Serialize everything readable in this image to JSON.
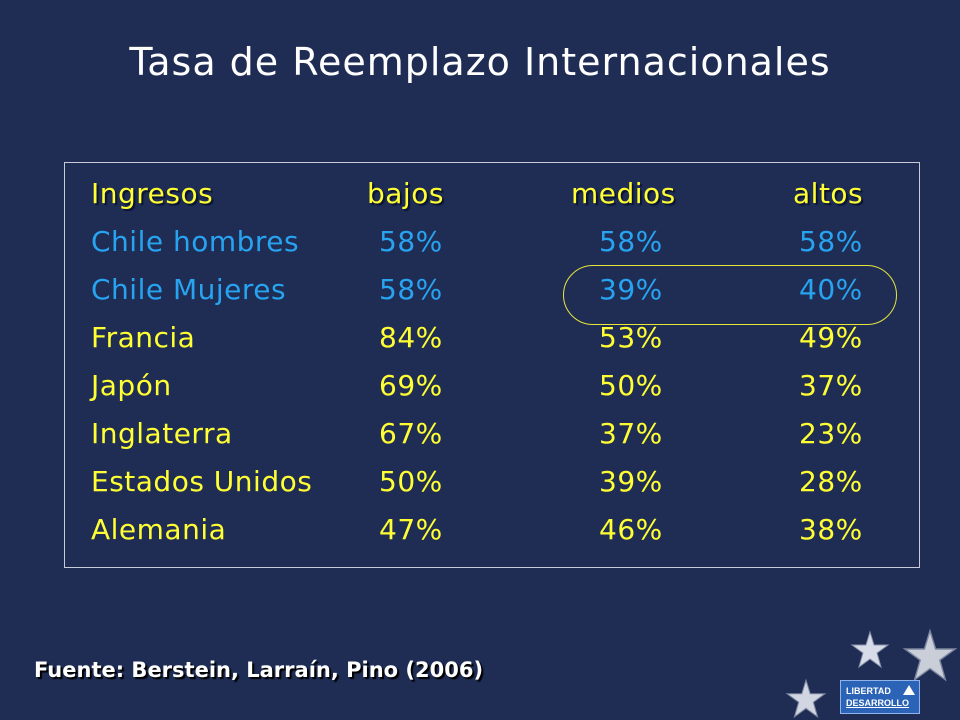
{
  "title": "Tasa de Reemplazo Internacionales",
  "table": {
    "headers": [
      "Ingresos",
      "bajos",
      "medios",
      "altos"
    ],
    "rows": [
      {
        "label": "Chile hombres",
        "bajos": "58%",
        "medios": "58%",
        "altos": "58%",
        "color": "#27a3f0"
      },
      {
        "label": "Chile Mujeres",
        "bajos": "58%",
        "medios": "39%",
        "altos": "40%",
        "color": "#27a3f0"
      },
      {
        "label": "Francia",
        "bajos": "84%",
        "medios": "53%",
        "altos": "49%",
        "color": "#ffff33"
      },
      {
        "label": "Japón",
        "bajos": "69%",
        "medios": "50%",
        "altos": "37%",
        "color": "#ffff33"
      },
      {
        "label": "Inglaterra",
        "bajos": "67%",
        "medios": "37%",
        "altos": "23%",
        "color": "#ffff33"
      },
      {
        "label": "Estados Unidos",
        "bajos": "50%",
        "medios": "39%",
        "altos": "28%",
        "color": "#ffff33"
      },
      {
        "label": "Alemania",
        "bajos": "47%",
        "medios": "46%",
        "altos": "38%",
        "color": "#ffff33"
      }
    ],
    "highlight": {
      "row": "Chile Mujeres",
      "columns": [
        "medios",
        "altos"
      ]
    }
  },
  "source": "Fuente: Berstein, Larraín, Pino (2006)",
  "logo": {
    "line1": "LIBERTAD",
    "line2": "DESARROLLO"
  },
  "colors": {
    "background": "#1f2d55",
    "header": "#ffff33",
    "chile": "#27a3f0",
    "others": "#ffff33",
    "highlight_border": "#e6e63a"
  },
  "icons": [
    "star-icon",
    "star-icon",
    "star-icon",
    "triangle-logo-icon"
  ]
}
